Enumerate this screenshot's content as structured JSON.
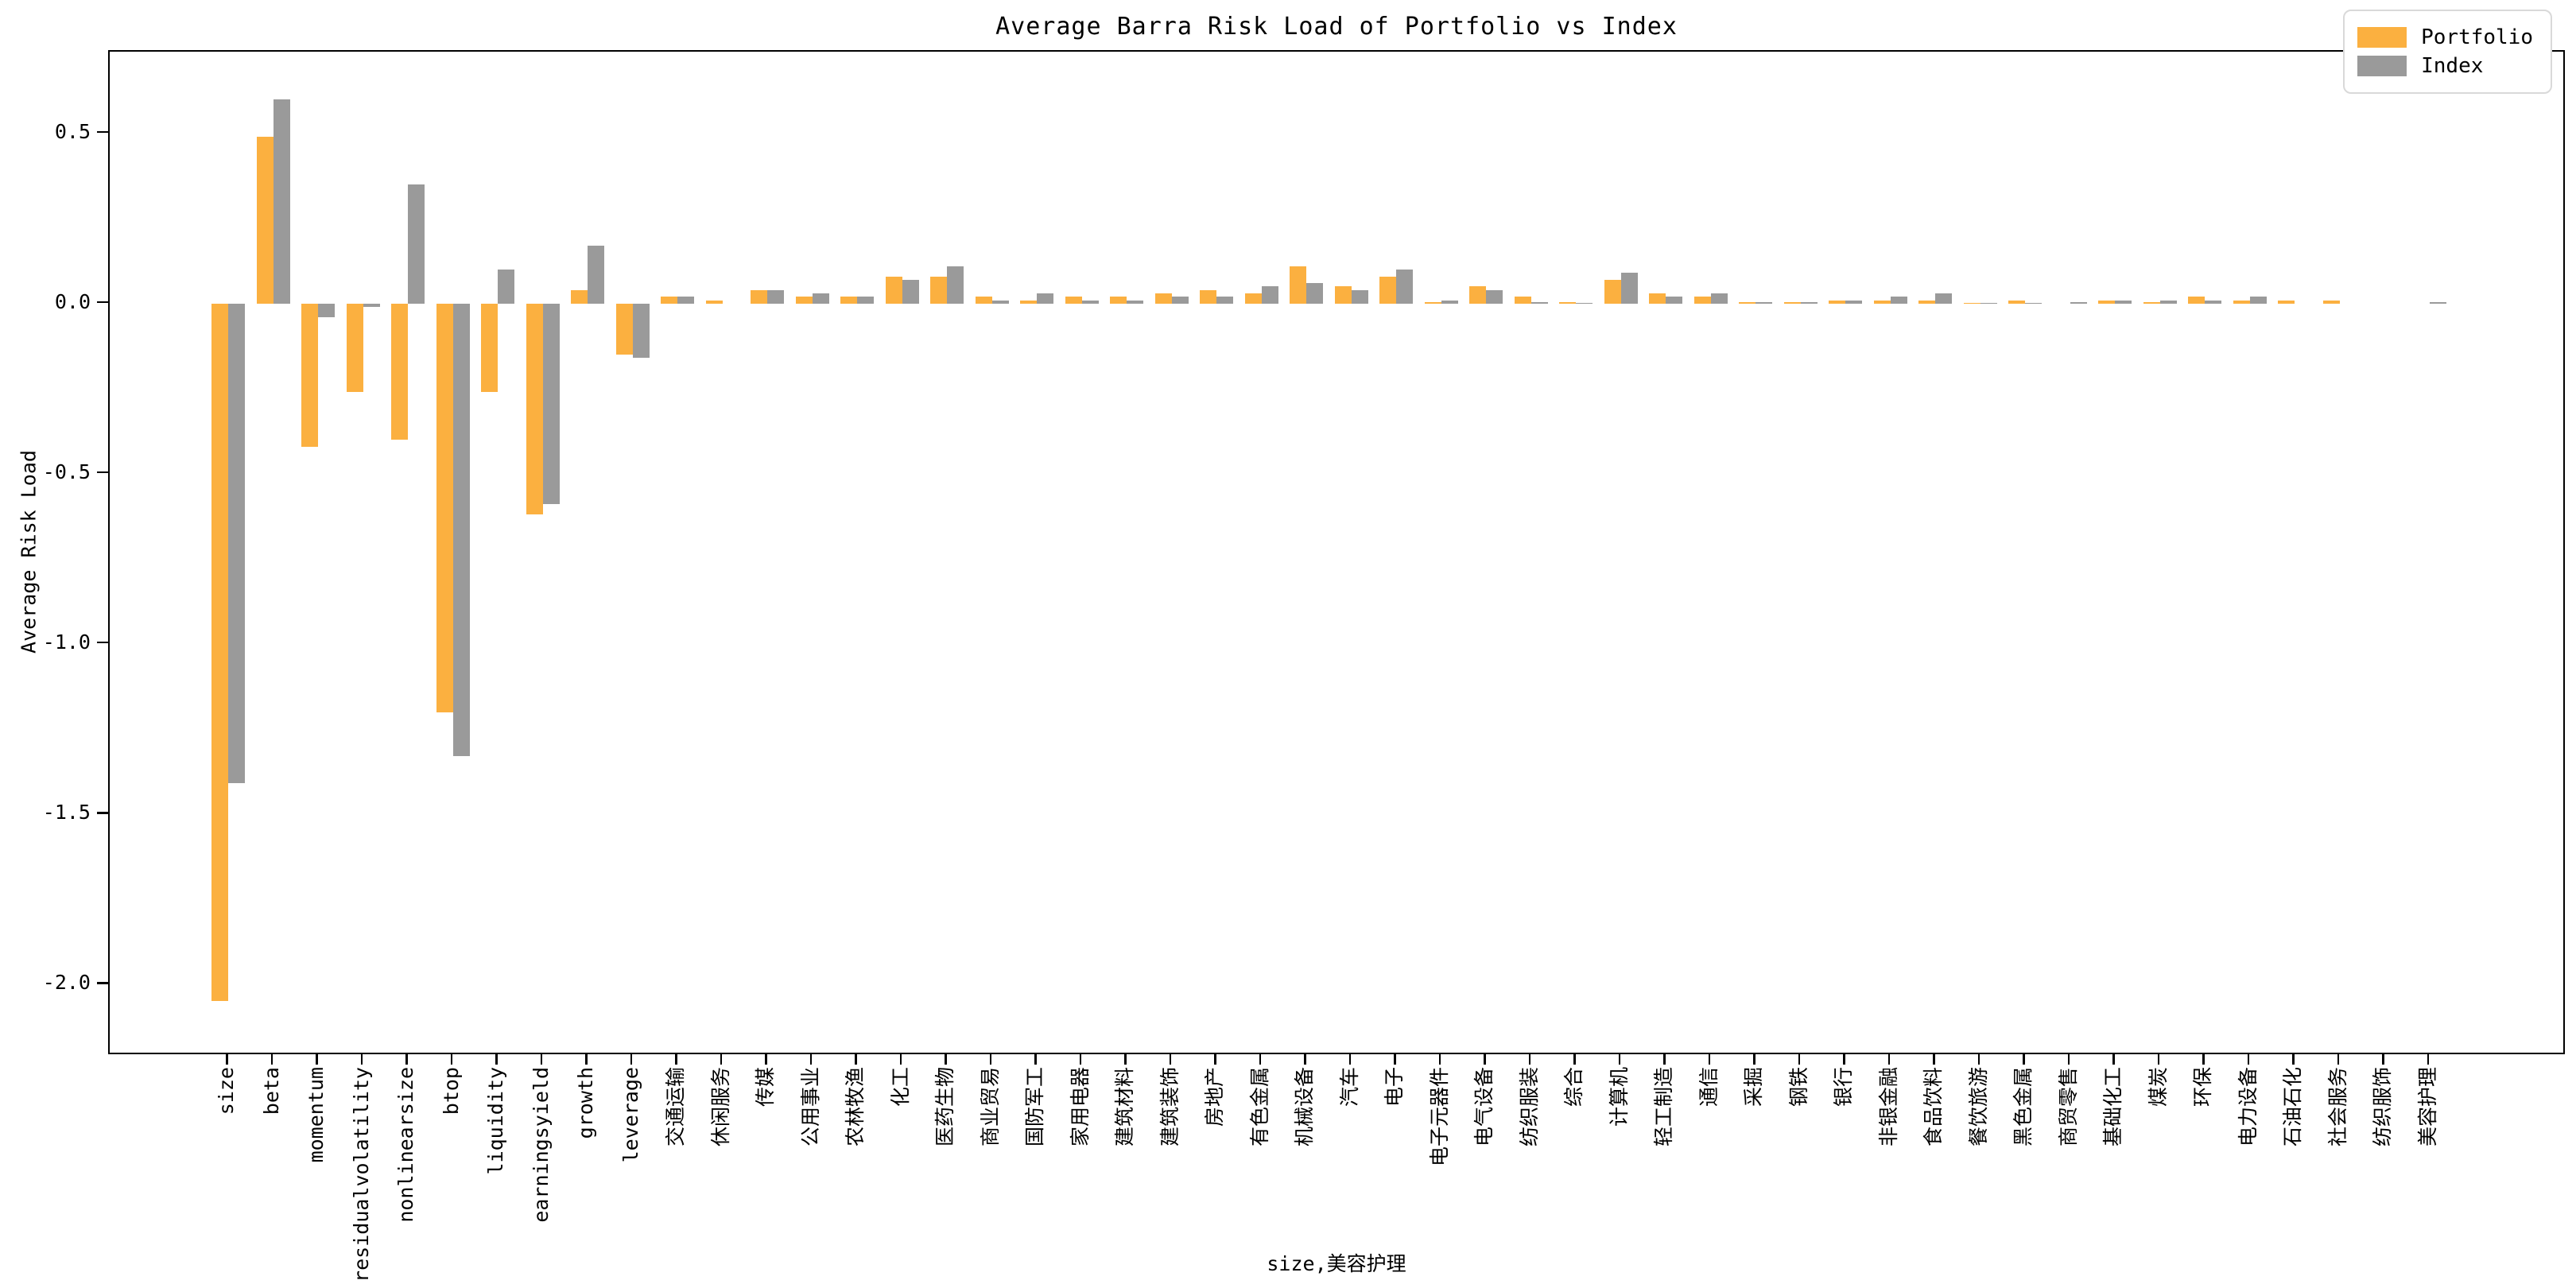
{
  "title": "Average Barra Risk Load of Portfolio vs Index",
  "axis": {
    "ylabel": "Average Risk Load",
    "xlabel": "size,美容护理"
  },
  "legend": {
    "portfolio_label": "Portfolio",
    "index_label": "Index"
  },
  "colors": {
    "portfolio": "#FBB040",
    "index": "#9A9A9A",
    "spine": "#000000",
    "legend_border": "#d9d9d9"
  },
  "chart_data": {
    "type": "bar",
    "title": "Average Barra Risk Load of Portfolio vs Index",
    "xlabel": "size,美容护理",
    "ylabel": "Average Risk Load",
    "grid": false,
    "legend_position": "upper right",
    "ylim": [
      -2.21,
      0.74
    ],
    "yticks": [
      0.5,
      0.0,
      -0.5,
      -1.0,
      -1.5,
      -2.0
    ],
    "categories": [
      "size",
      "beta",
      "momentum",
      "residualvolatility",
      "nonlinearsize",
      "btop",
      "liquidity",
      "earningsyield",
      "growth",
      "leverage",
      "交通运输",
      "休闲服务",
      "传媒",
      "公用事业",
      "农林牧渔",
      "化工",
      "医药生物",
      "商业贸易",
      "国防军工",
      "家用电器",
      "建筑材料",
      "建筑装饰",
      "房地产",
      "有色金属",
      "机械设备",
      "汽车",
      "电子",
      "电子元器件",
      "电气设备",
      "纺织服装",
      "综合",
      "计算机",
      "轻工制造",
      "通信",
      "采掘",
      "钢铁",
      "银行",
      "非银金融",
      "食品饮料",
      "餐饮旅游",
      "黑色金属",
      "商贸零售",
      "基础化工",
      "煤炭",
      "环保",
      "电力设备",
      "石油石化",
      "社会服务",
      "纺织服饰",
      "美容护理"
    ],
    "series": [
      {
        "name": "Portfolio",
        "color": "#FBB040",
        "values": [
          -2.05,
          0.49,
          -0.42,
          -0.26,
          -0.4,
          -1.2,
          -0.26,
          -0.62,
          0.04,
          -0.15,
          0.02,
          0.01,
          0.04,
          0.02,
          0.02,
          0.08,
          0.08,
          0.02,
          0.01,
          0.02,
          0.02,
          0.03,
          0.04,
          0.03,
          0.11,
          0.05,
          0.08,
          0.005,
          0.05,
          0.02,
          0.005,
          0.07,
          0.03,
          0.02,
          0.005,
          0.005,
          0.01,
          0.01,
          0.01,
          0.002,
          0.01,
          0.0,
          0.01,
          0.005,
          0.02,
          0.01,
          0.01,
          0.01,
          0.0,
          0.0
        ]
      },
      {
        "name": "Index",
        "color": "#9A9A9A",
        "values": [
          -1.41,
          0.6,
          -0.04,
          -0.01,
          0.35,
          -1.33,
          0.1,
          -0.59,
          0.17,
          -0.16,
          0.02,
          0.0,
          0.04,
          0.03,
          0.02,
          0.07,
          0.11,
          0.01,
          0.03,
          0.01,
          0.01,
          0.02,
          0.02,
          0.05,
          0.06,
          0.04,
          0.1,
          0.01,
          0.04,
          0.005,
          0.002,
          0.09,
          0.02,
          0.03,
          0.005,
          0.005,
          0.01,
          0.02,
          0.03,
          0.002,
          0.002,
          0.005,
          0.01,
          0.01,
          0.01,
          0.02,
          0.0,
          0.0,
          0.0,
          0.005
        ]
      }
    ]
  }
}
